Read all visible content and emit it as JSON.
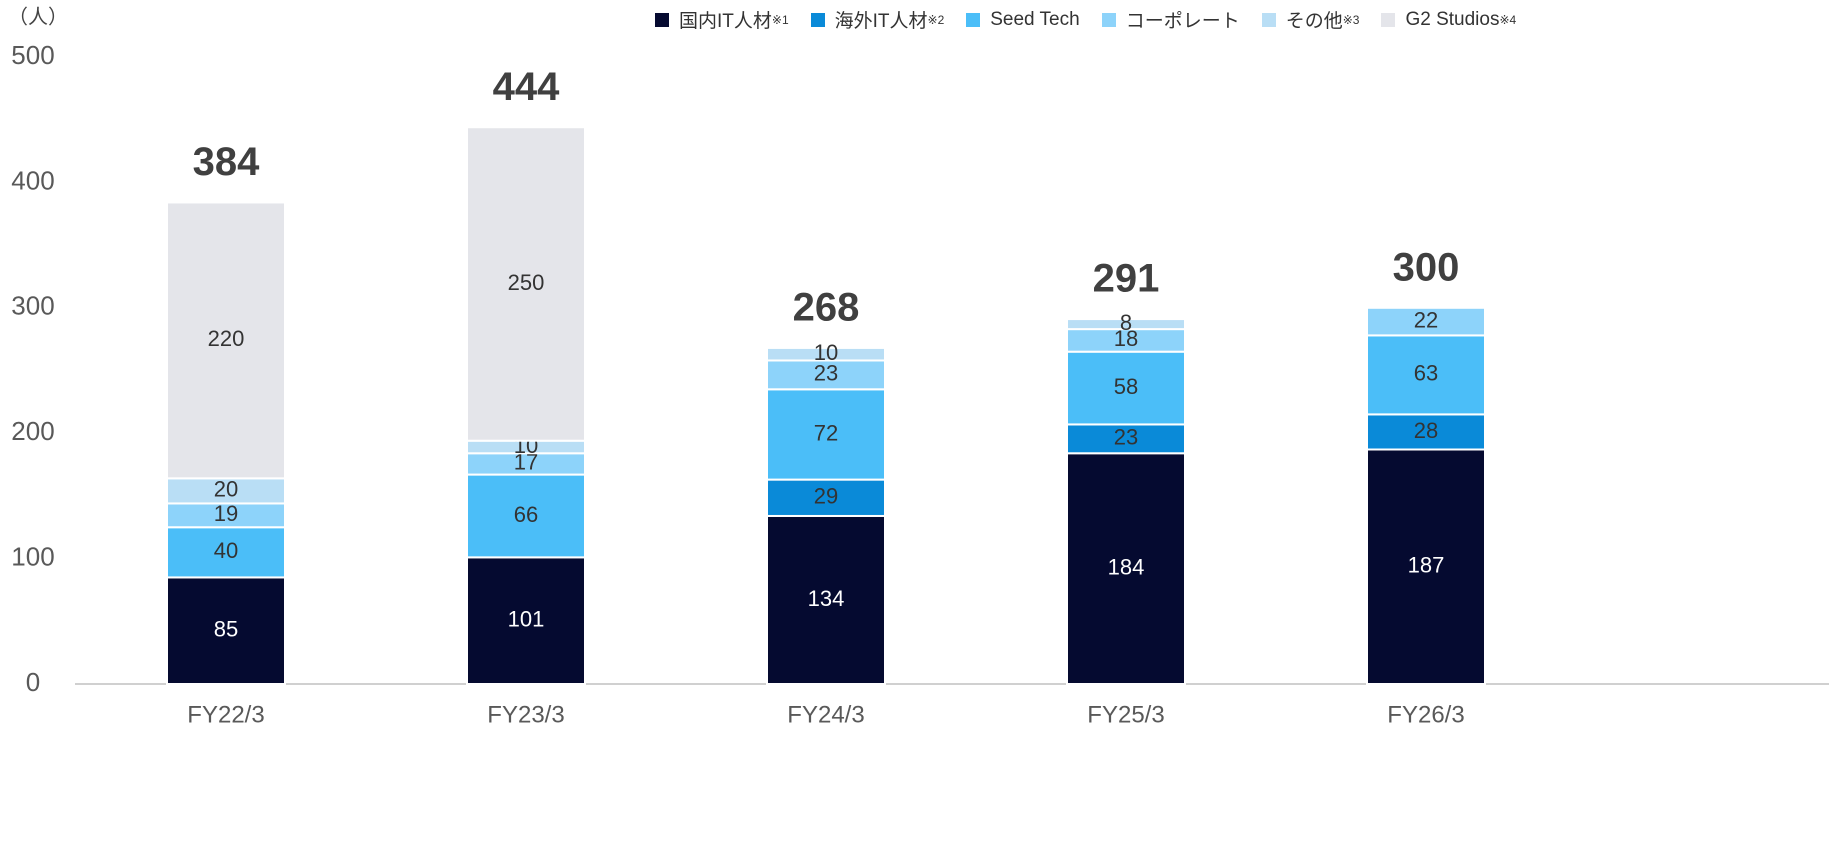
{
  "chart_data": {
    "type": "stacked_bar",
    "ylabel": "（人）",
    "categories": [
      "FY22/3",
      "FY23/3",
      "FY24/3",
      "FY25/3",
      "FY26/3"
    ],
    "series": [
      {
        "name": "国内IT人材",
        "note": "※1",
        "color": "#050a30",
        "values": [
          85,
          101,
          134,
          184,
          187
        ]
      },
      {
        "name": "海外IT人材",
        "note": "※2",
        "color": "#0a8ad8",
        "values": [
          null,
          null,
          29,
          23,
          28
        ]
      },
      {
        "name": "Seed Tech",
        "color": "#4bbef8",
        "values": [
          40,
          66,
          72,
          58,
          63
        ]
      },
      {
        "name": "コーポレート",
        "color": "#8dd3fa",
        "values": [
          19,
          17,
          23,
          18,
          22
        ]
      },
      {
        "name": "その他",
        "note": "※3",
        "color": "#b9def5",
        "values": [
          20,
          10,
          10,
          8,
          null
        ]
      },
      {
        "name": "G2 Studios",
        "note": "※4",
        "color": "#e4e5ea",
        "values": [
          220,
          250,
          null,
          null,
          null
        ]
      }
    ],
    "totals": [
      384,
      444,
      268,
      291,
      300
    ],
    "ylim": [
      0,
      500
    ],
    "yticks": [
      0,
      100,
      200,
      300,
      400,
      500
    ],
    "grid": false
  }
}
